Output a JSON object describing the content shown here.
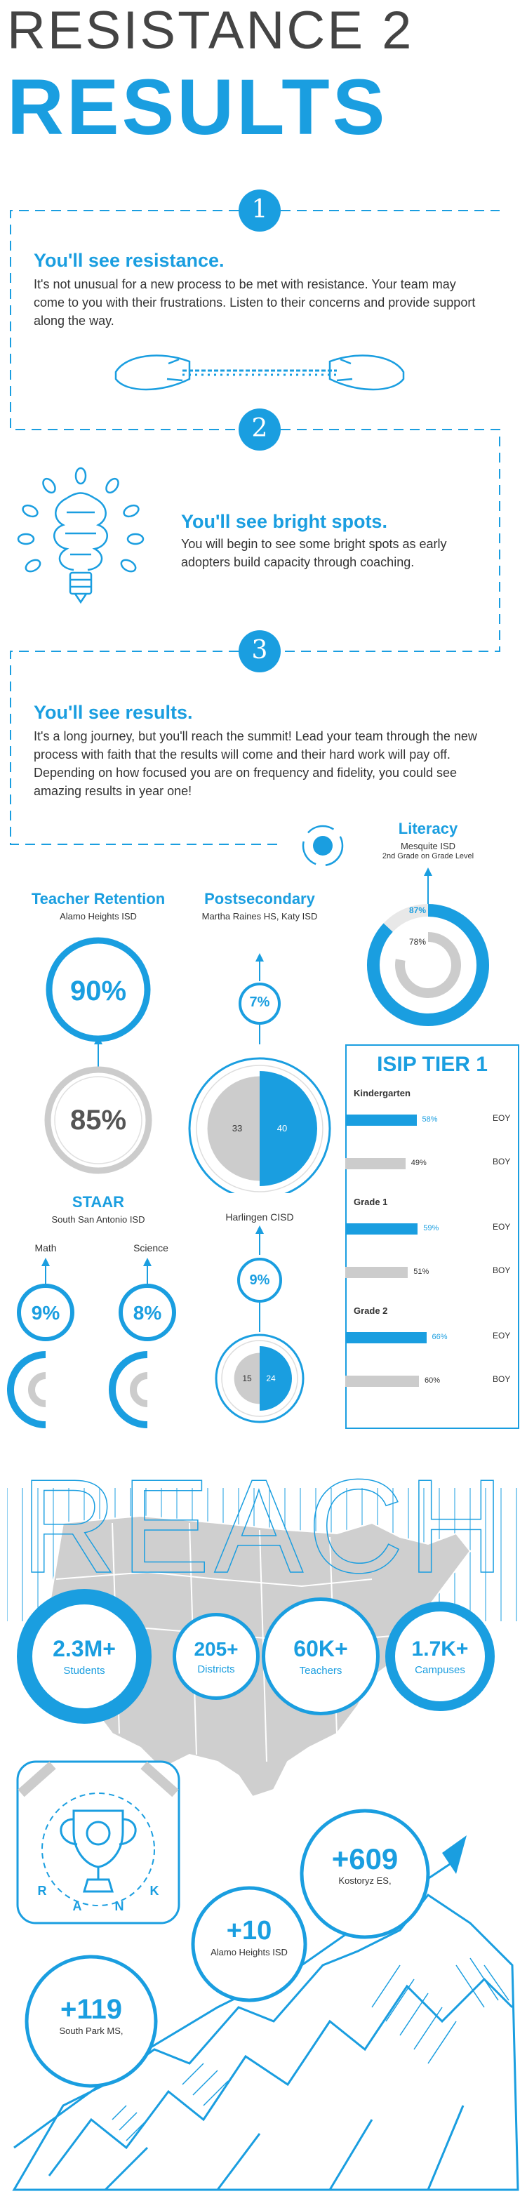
{
  "header": {
    "line1": "RESISTANCE 2",
    "line2": "RESULTS"
  },
  "steps": [
    {
      "number": "1",
      "title": "You'll see resistance.",
      "body": "It's not unusual for a new process to be met with resistance. Your team may come to you with their frustrations. Listen to their concerns and provide support along the way."
    },
    {
      "number": "2",
      "title": "You'll see bright spots.",
      "body": "You will begin to see some bright spots as early adopters build capacity through coaching."
    },
    {
      "number": "3",
      "title": "You'll see results.",
      "body": "It's a long journey, but you'll reach the summit! Lead your team through the new process with faith that the results will come and their hard work will pay off. Depending on how focused you  are on frequency and fidelity, you could see amazing results in year one!"
    }
  ],
  "literacy": {
    "title": "Literacy",
    "district": "Mesquite ISD",
    "level": "2nd Grade on Grade Level",
    "value_a": 87,
    "value_a_label": "87%",
    "value_b": 78,
    "value_b_label": "78%"
  },
  "teacher_retention": {
    "title": "Teacher Retention",
    "district": "Alamo Heights ISD",
    "after": "90%",
    "before": "85%"
  },
  "postsecondary": {
    "title": "Postsecondary",
    "school": "Martha Raines HS, Katy ISD",
    "increase": "7%",
    "left_value": 33,
    "left_label": "33",
    "right_value": 40,
    "right_label": "40",
    "second_school": "Harlingen CISD",
    "increase2": "9%",
    "left_value2": 15,
    "left_label2": "15",
    "right_value2": 24,
    "right_label2": "24"
  },
  "staar": {
    "title": "STAAR",
    "district": "South San Antonio ISD",
    "math_label": "Math",
    "math_value": "9%",
    "science_label": "Science",
    "science_value": "8%"
  },
  "isip": {
    "title": "ISIP TIER 1",
    "groups": [
      {
        "name": "Kindergarten",
        "eoy": 58,
        "eoy_label": "58%",
        "boy": 49,
        "boy_label": "49%"
      },
      {
        "name": "Grade 1",
        "eoy": 59,
        "eoy_label": "59%",
        "boy": 51,
        "boy_label": "51%"
      },
      {
        "name": "Grade 2",
        "eoy": 66,
        "eoy_label": "66%",
        "boy": 60,
        "boy_label": "60%"
      }
    ],
    "eoy_tag": "EOY",
    "boy_tag": "BOY"
  },
  "reach": {
    "title": "REACH",
    "stats": [
      {
        "value": "2.3M+",
        "label": "Students"
      },
      {
        "value": "205+",
        "label": "Districts"
      },
      {
        "value": "60K+",
        "label": "Teachers"
      },
      {
        "value": "1.7K+",
        "label": "Campuses"
      }
    ]
  },
  "rank": {
    "letters": [
      "R",
      "A",
      "N",
      "K"
    ],
    "items": [
      {
        "value": "+119",
        "label": "South Park MS,"
      },
      {
        "value": "+10",
        "label": "Alamo Heights ISD"
      },
      {
        "value": "+609",
        "label": "Kostoryz ES,"
      }
    ]
  },
  "colors": {
    "accent": "#1a9ee0",
    "gray": "#cccccc",
    "text": "#333333"
  }
}
